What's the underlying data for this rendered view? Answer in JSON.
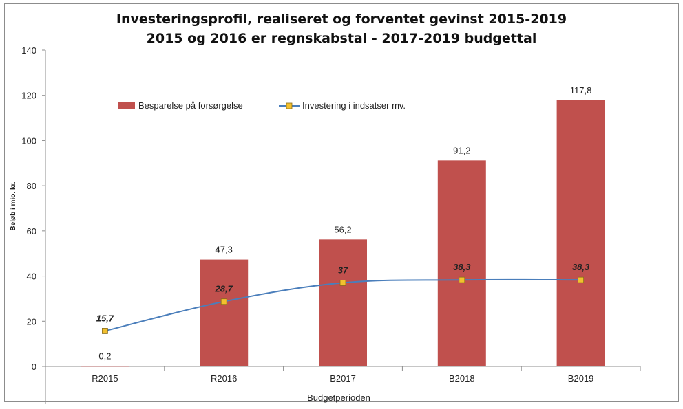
{
  "chart_data": {
    "type": "bar",
    "title": "Investeringsprofil, realiseret og forventet gevinst 2015-2019",
    "subtitle": "2015 og 2016 er regnskabstal - 2017-2019 budgettal",
    "xlabel": "Budgetperioden",
    "ylabel": "Beløb i mio. kr.",
    "categories": [
      "R2015",
      "R2016",
      "B2017",
      "B2018",
      "B2019"
    ],
    "ylim": [
      0,
      140
    ],
    "yticks": [
      0,
      20,
      40,
      60,
      80,
      100,
      120,
      140
    ],
    "grid": false,
    "legend_position": "top",
    "series": [
      {
        "name": "Besparelse på forsørgelse",
        "kind": "bar",
        "color": "#C0504D",
        "values": [
          0.2,
          47.3,
          56.2,
          91.2,
          117.8
        ],
        "labels": [
          "0,2",
          "47,3",
          "56,2",
          "91,2",
          "117,8"
        ]
      },
      {
        "name": "Investering i indsatser mv.",
        "kind": "line",
        "color": "#4A7EBB",
        "marker_color": "#F2C02E",
        "values": [
          15.7,
          28.7,
          37,
          38.3,
          38.3
        ],
        "labels": [
          "15,7",
          "28,7",
          "37",
          "38,3",
          "38,3"
        ]
      }
    ]
  }
}
